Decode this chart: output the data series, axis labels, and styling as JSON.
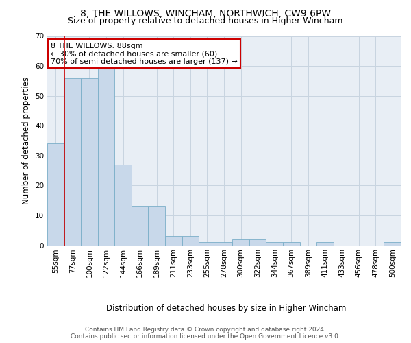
{
  "title_line1": "8, THE WILLOWS, WINCHAM, NORTHWICH, CW9 6PW",
  "title_line2": "Size of property relative to detached houses in Higher Wincham",
  "xlabel": "Distribution of detached houses by size in Higher Wincham",
  "ylabel": "Number of detached properties",
  "categories": [
    "55sqm",
    "77sqm",
    "100sqm",
    "122sqm",
    "144sqm",
    "166sqm",
    "189sqm",
    "211sqm",
    "233sqm",
    "255sqm",
    "278sqm",
    "300sqm",
    "322sqm",
    "344sqm",
    "367sqm",
    "389sqm",
    "411sqm",
    "433sqm",
    "456sqm",
    "478sqm",
    "500sqm"
  ],
  "bar_heights": [
    34,
    56,
    56,
    59,
    27,
    13,
    13,
    3,
    3,
    1,
    1,
    2,
    2,
    1,
    1,
    0,
    1,
    0,
    0,
    0,
    1
  ],
  "bar_color": "#c8d8ea",
  "bar_edge_color": "#7aaec8",
  "ylim": [
    0,
    70
  ],
  "yticks": [
    0,
    10,
    20,
    30,
    40,
    50,
    60,
    70
  ],
  "vline_x_idx": 1,
  "vline_color": "#cc0000",
  "annotation_text": "8 THE WILLOWS: 88sqm\n← 30% of detached houses are smaller (60)\n70% of semi-detached houses are larger (137) →",
  "annotation_box_color": "#ffffff",
  "annotation_box_edge_color": "#cc0000",
  "footer_line1": "Contains HM Land Registry data © Crown copyright and database right 2024.",
  "footer_line2": "Contains public sector information licensed under the Open Government Licence v3.0.",
  "background_color": "#ffffff",
  "plot_bg_color": "#e8eef5",
  "grid_color": "#c8d4e0",
  "title_fontsize": 10,
  "subtitle_fontsize": 9,
  "axis_label_fontsize": 8.5,
  "tick_fontsize": 7.5,
  "annotation_fontsize": 8,
  "footer_fontsize": 6.5
}
